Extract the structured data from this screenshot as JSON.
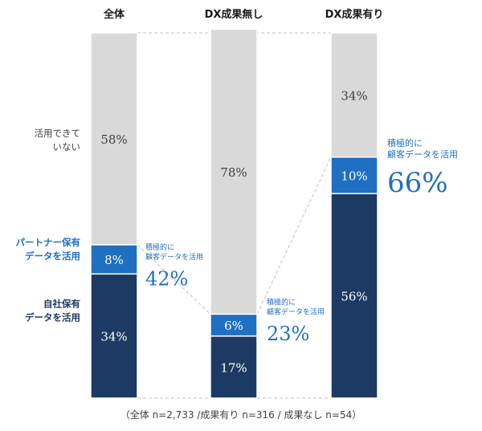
{
  "chart_data": {
    "type": "bar",
    "stacked": true,
    "categories": [
      "全体",
      "DX成果無し",
      "DX成果有り"
    ],
    "series": [
      {
        "name": "自社保有データを活用",
        "values": [
          34,
          17,
          56
        ],
        "color": "#1c3a63",
        "labels": [
          "34%",
          "17%",
          "56%"
        ]
      },
      {
        "name": "パートナー保有データを活用",
        "values": [
          8,
          6,
          10
        ],
        "color": "#1f6fc2",
        "labels": [
          "8%",
          "6%",
          "10%"
        ]
      },
      {
        "name": "活用できていない",
        "values": [
          58,
          78,
          34
        ],
        "color": "#d9d9d9",
        "labels": [
          "58%",
          "78%",
          "34%"
        ]
      }
    ],
    "row_labels": {
      "not_using": [
        "活用できて",
        "いない"
      ],
      "partner": [
        "パートナー保有",
        "データを活用"
      ],
      "own": [
        "自社保有",
        "データを活用"
      ]
    },
    "annotations": [
      {
        "category": "全体",
        "caption": [
          "積極的に",
          "顧客データを活用"
        ],
        "value": 42,
        "label": "42%"
      },
      {
        "category": "DX成果無し",
        "caption": [
          "積極的に",
          "顧客データを活用"
        ],
        "value": 23,
        "label": "23%"
      },
      {
        "category": "DX成果有り",
        "caption": [
          "積極的に",
          "顧客データを活用"
        ],
        "value": 66,
        "label": "66%"
      }
    ],
    "footnote": "（全体 n=2,733 /成果有り n=316 / 成果なし n=54）",
    "ylim": [
      0,
      100
    ],
    "legend": "left",
    "grid": false,
    "colors": {
      "annotation": "#1f6fc2",
      "text_dark": "#1c3a63",
      "connector": "#bfbfbf"
    }
  }
}
